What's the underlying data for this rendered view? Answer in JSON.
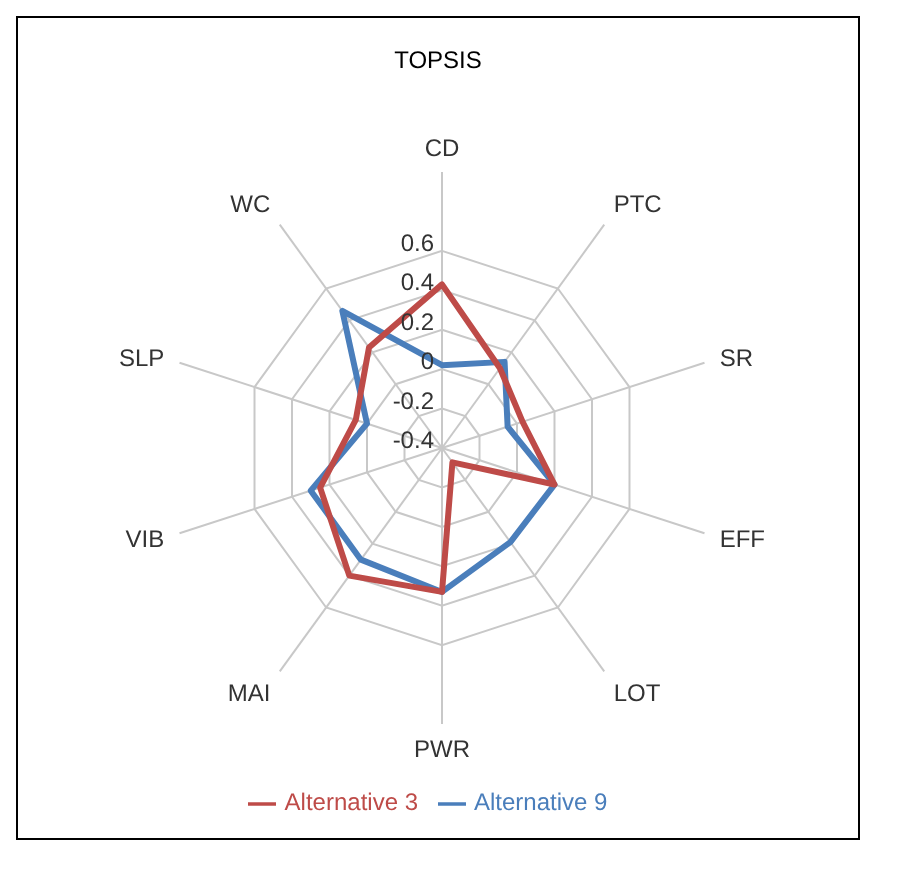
{
  "chart_data": {
    "type": "radar",
    "title": "TOPSIS",
    "categories": [
      "CD",
      "PTC",
      "SR",
      "EFF",
      "LOT",
      "PWR",
      "MAI",
      "VIB",
      "SLP",
      "WC"
    ],
    "series": [
      {
        "name": "Alternative 9",
        "color": "#4a7ebb",
        "values": [
          0.02,
          0.14,
          -0.05,
          0.2,
          0.19,
          0.33,
          0.3,
          0.3,
          0.0,
          0.46
        ]
      },
      {
        "name": "Alternative 3",
        "color": "#be4b48",
        "values": [
          0.43,
          0.1,
          0.03,
          0.2,
          -0.31,
          0.33,
          0.4,
          0.25,
          0.06,
          0.23
        ]
      }
    ],
    "ylim": [
      -0.4,
      0.6
    ],
    "yticks": [
      -0.4,
      -0.2,
      0,
      0.2,
      0.4,
      0.6
    ],
    "grid": true,
    "legend": "bottom",
    "marker": "none"
  }
}
